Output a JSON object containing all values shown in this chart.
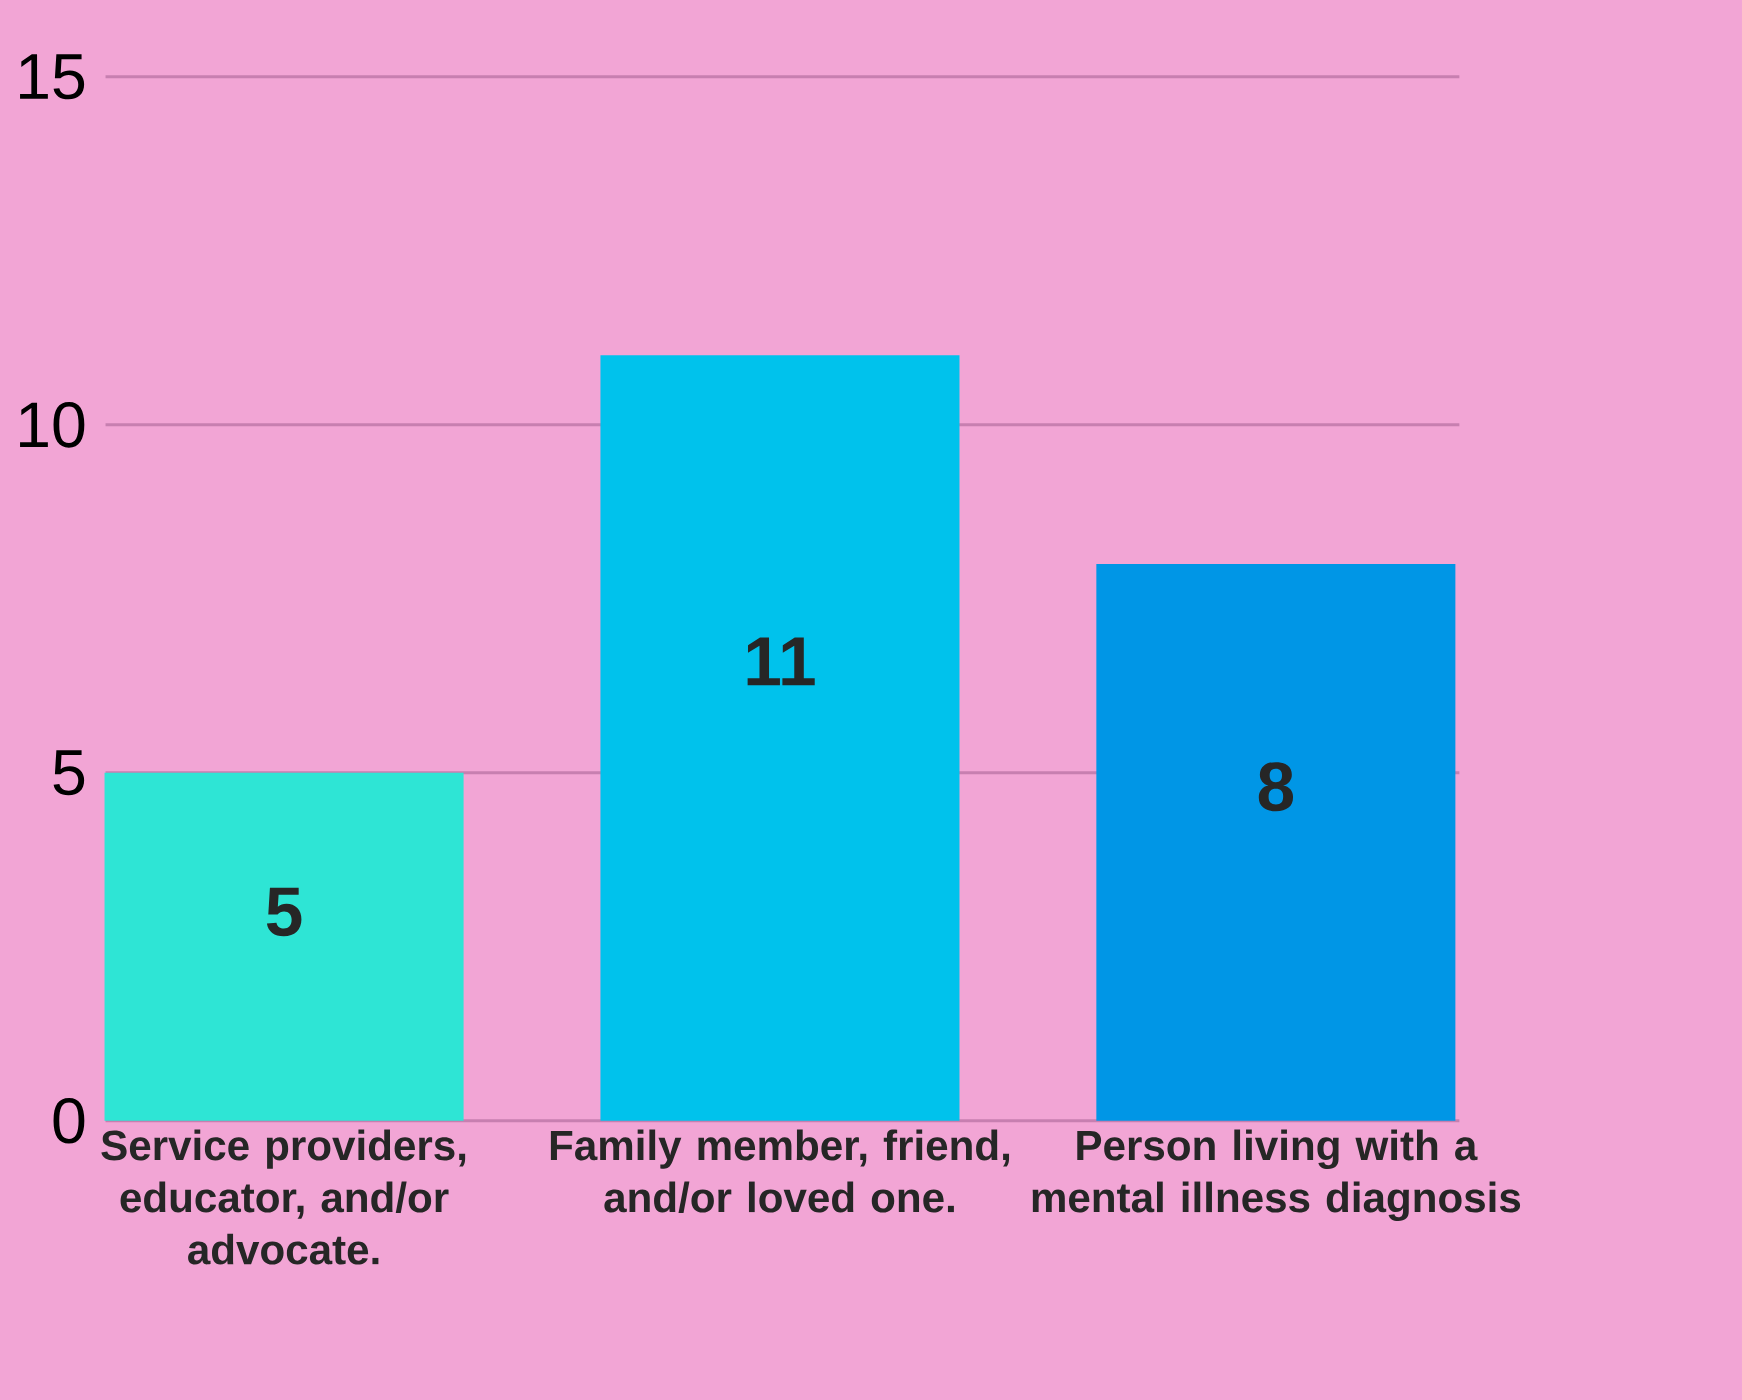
{
  "chart_data": {
    "type": "bar",
    "categories": [
      "Service providers, educator, and/or advocate.",
      "Family member, friend, and/or loved one.",
      "Person living with a mental illness diagnosis"
    ],
    "values": [
      5,
      11,
      8
    ],
    "colors": [
      "#2ee5d5",
      "#00c2ec",
      "#0096e6"
    ],
    "ylim": [
      0,
      15
    ],
    "yticks": [
      0,
      5,
      10,
      15
    ],
    "grid": "y",
    "data_labels": true
  }
}
